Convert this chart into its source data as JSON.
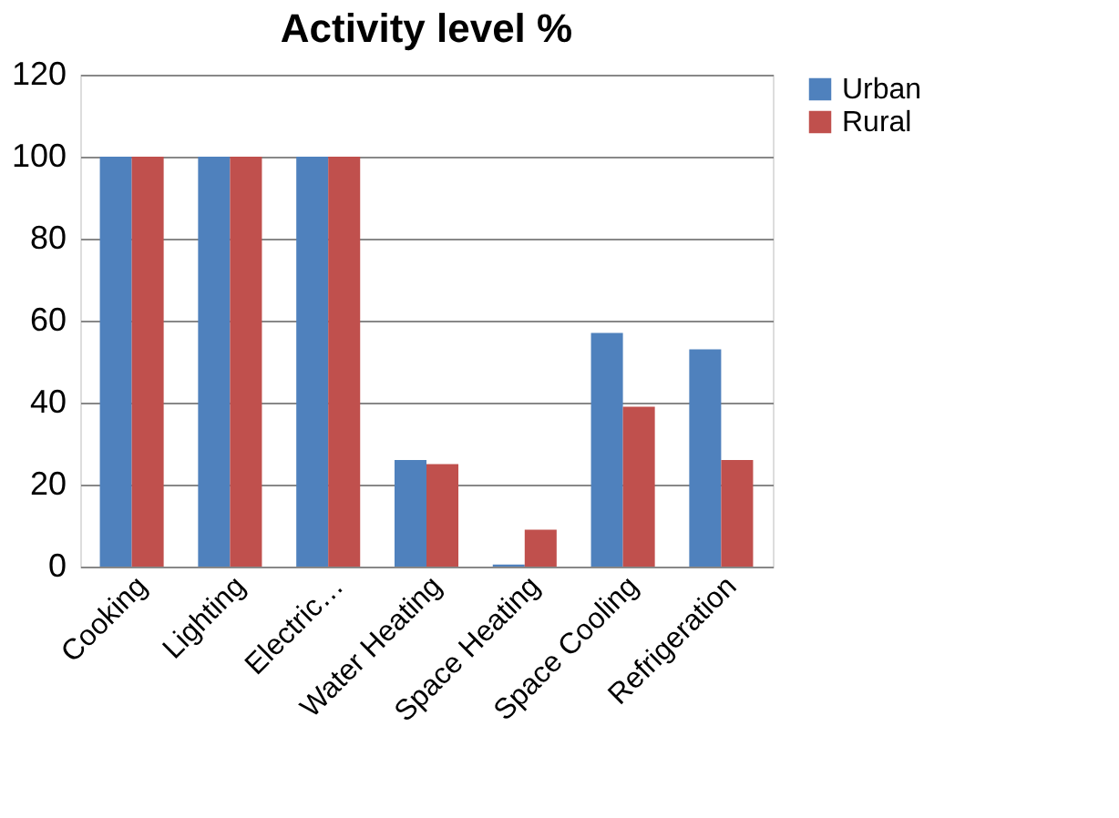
{
  "chart_data": {
    "type": "bar",
    "title": "Activity level %",
    "categories": [
      "Cooking",
      "Lighting",
      "Electric…",
      "Water Heating",
      "Space Heating",
      "Space Cooling",
      "Refrigeration"
    ],
    "series": [
      {
        "name": "Urban",
        "color": "#4f81bd",
        "values": [
          100,
          100,
          100,
          26,
          0.5,
          57,
          53
        ]
      },
      {
        "name": "Rural",
        "color": "#c0504d",
        "values": [
          100,
          100,
          100,
          25,
          9,
          39,
          26
        ]
      }
    ],
    "ylim": [
      0,
      120
    ],
    "yticks": [
      0,
      20,
      40,
      60,
      80,
      100,
      120
    ],
    "grid": "y",
    "legend": "right"
  }
}
